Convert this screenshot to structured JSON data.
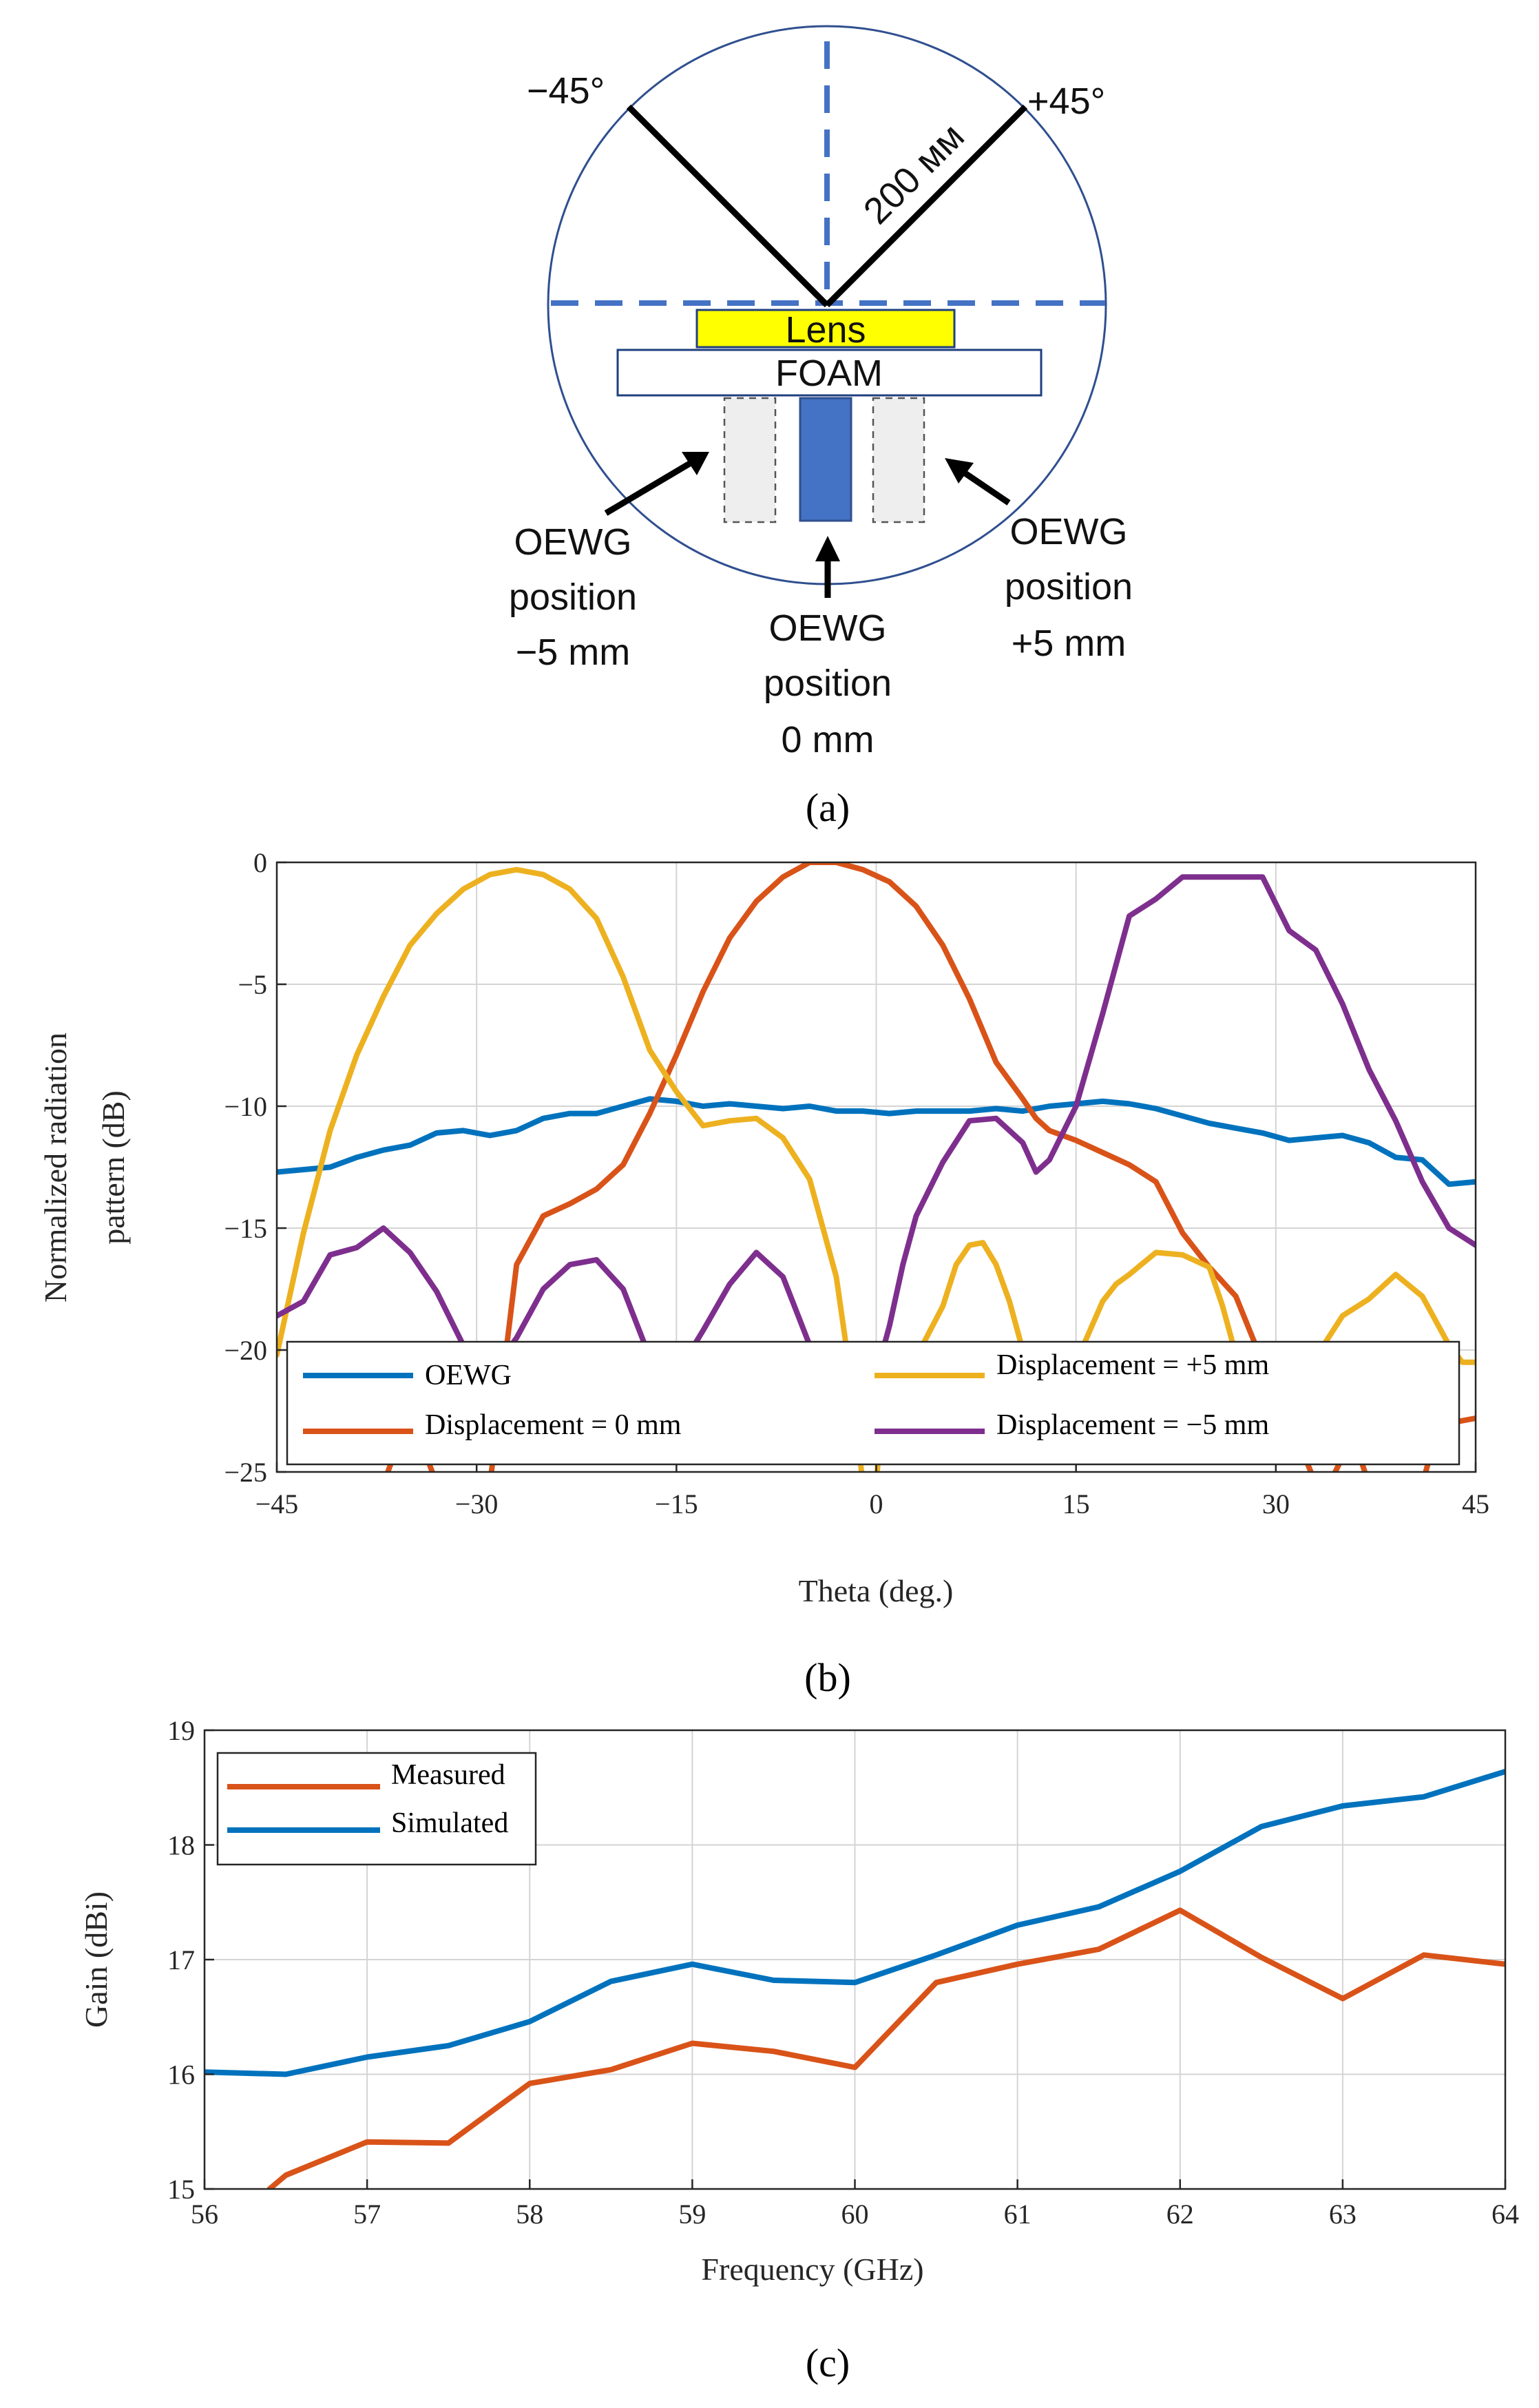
{
  "panel_a": {
    "caption": "(a)",
    "angle_left": "−45°",
    "angle_right": "+45°",
    "radius_label": "200 мм",
    "lens_label": "Lens",
    "foam_label": "FOAM",
    "left_label": [
      "OEWG",
      "position",
      "−5 mm"
    ],
    "center_label": [
      "OEWG",
      "position",
      "0 mm"
    ],
    "right_label": [
      "OEWG",
      "position",
      "+5 mm"
    ],
    "colors": {
      "lens": "#ffff00",
      "feed": "#4472c4",
      "dashed": "#4472c4",
      "circle": "#2f4f8f",
      "ghost": "#eeeeee"
    }
  },
  "chart_data": [
    {
      "id": "b",
      "type": "line",
      "caption": "(b)",
      "xlabel": "Theta (deg.)",
      "ylabel": "Normalized radiation pattern (dB)",
      "ylabel_lines": [
        "Normalized radiation",
        "pattern (dB)"
      ],
      "xlim": [
        -45,
        45
      ],
      "ylim": [
        -25,
        0
      ],
      "xticks": [
        -45,
        -30,
        -15,
        0,
        15,
        30,
        45
      ],
      "yticks": [
        -25,
        -20,
        -15,
        -10,
        -5,
        0
      ],
      "xtick_labels": [
        "−45",
        "−30",
        "−15",
        "0",
        "15",
        "30",
        "45"
      ],
      "ytick_labels": [
        "−25",
        "−20",
        "−15",
        "−10",
        "−5",
        "0"
      ],
      "grid": true,
      "legend_position": "bottom",
      "series": [
        {
          "name": "OEWG",
          "color": "#0072bd",
          "x": [
            -45,
            -41,
            -39,
            -37,
            -35,
            -33,
            -31,
            -29,
            -27,
            -25,
            -23,
            -21,
            -19,
            -17,
            -15,
            -13,
            -11,
            -9,
            -7,
            -5,
            -3,
            -1,
            1,
            3,
            5,
            7,
            9,
            11,
            13,
            15,
            17,
            19,
            21,
            23,
            25,
            27,
            29,
            31,
            33,
            35,
            37,
            39,
            41,
            43,
            45
          ],
          "y": [
            -12.7,
            -12.5,
            -12.1,
            -11.8,
            -11.6,
            -11.1,
            -11.0,
            -11.2,
            -11.0,
            -10.5,
            -10.3,
            -10.3,
            -10.0,
            -9.7,
            -9.8,
            -10.0,
            -9.9,
            -10.0,
            -10.1,
            -10.0,
            -10.2,
            -10.2,
            -10.3,
            -10.2,
            -10.2,
            -10.2,
            -10.1,
            -10.2,
            -10.0,
            -9.9,
            -9.8,
            -9.9,
            -10.1,
            -10.4,
            -10.7,
            -10.9,
            -11.1,
            -11.4,
            -11.3,
            -11.2,
            -11.5,
            -12.1,
            -12.2,
            -13.2,
            -13.1
          ]
        },
        {
          "name": "Displacement = 0 mm",
          "color": "#d95319",
          "x": [
            -37,
            -36,
            -34,
            -33,
            -29,
            -28,
            -27,
            -25,
            -23,
            -21,
            -19,
            -17,
            -15,
            -13,
            -11,
            -9,
            -7,
            -5,
            -3,
            -1,
            1,
            3,
            5,
            7,
            9,
            11,
            12,
            13,
            15,
            17,
            19,
            21,
            23,
            25,
            27,
            29,
            31,
            33,
            34,
            35,
            36,
            37,
            41,
            42,
            43,
            45
          ],
          "y": [
            -25.5,
            -24.0,
            -24.0,
            -25.5,
            -25.5,
            -21.0,
            -16.5,
            -14.5,
            -14.0,
            -13.4,
            -12.4,
            -10.3,
            -7.9,
            -5.3,
            -3.1,
            -1.6,
            -0.6,
            0,
            0,
            -0.3,
            -0.8,
            -1.8,
            -3.4,
            -5.6,
            -8.2,
            -9.7,
            -10.5,
            -11.0,
            -11.4,
            -11.9,
            -12.4,
            -13.1,
            -15.2,
            -16.6,
            -17.8,
            -20.5,
            -22.8,
            -25.5,
            -25.5,
            -24.4,
            -23.9,
            -25.5,
            -25.5,
            -23.5,
            -23.0,
            -22.8
          ]
        },
        {
          "name": "Displacement = +5 mm",
          "color": "#edb120",
          "x": [
            -45,
            -43,
            -41,
            -39,
            -37,
            -35,
            -33,
            -31,
            -29,
            -27,
            -25,
            -23,
            -21,
            -19,
            -17,
            -15,
            -13,
            -11,
            -9,
            -7,
            -5,
            -3,
            -2,
            -1,
            0,
            0.5,
            1,
            3,
            5,
            6,
            7,
            8,
            9,
            10,
            11,
            12,
            13,
            15,
            17,
            18,
            19,
            21,
            23,
            25,
            26,
            27,
            28,
            29,
            30,
            33,
            35,
            37,
            39,
            41,
            43,
            44,
            45
          ],
          "y": [
            -20.2,
            -15.2,
            -11.0,
            -7.9,
            -5.5,
            -3.4,
            -2.1,
            -1.1,
            -0.5,
            -0.3,
            -0.5,
            -1.1,
            -2.3,
            -4.7,
            -7.7,
            -9.4,
            -10.8,
            -10.6,
            -10.5,
            -11.3,
            -13.0,
            -17.0,
            -20.8,
            -25.5,
            -25.5,
            -22.0,
            -20.3,
            -20.3,
            -18.2,
            -16.5,
            -15.7,
            -15.6,
            -16.5,
            -18.0,
            -20.0,
            -20.5,
            -20.5,
            -20.5,
            -18.0,
            -17.3,
            -16.9,
            -16.0,
            -16.1,
            -16.6,
            -18.2,
            -20.2,
            -20.5,
            -20.5,
            -20.5,
            -20.3,
            -18.6,
            -17.9,
            -16.9,
            -17.8,
            -19.8,
            -20.5,
            -20.5
          ]
        },
        {
          "name": "Displacement = −5 mm",
          "color": "#7e2f8e",
          "x": [
            -45,
            -43,
            -41,
            -39,
            -37,
            -35,
            -33,
            -31,
            -30,
            -29,
            -27,
            -25,
            -23,
            -21,
            -19,
            -17,
            -15,
            -13,
            -11,
            -9,
            -7,
            -5,
            -3,
            -1,
            0,
            1,
            2,
            3,
            5,
            7,
            9,
            11,
            12,
            13,
            15,
            17,
            19,
            21,
            23,
            25,
            27,
            29,
            31,
            33,
            35,
            37,
            39,
            41,
            43,
            45
          ],
          "y": [
            -18.6,
            -18.0,
            -16.1,
            -15.8,
            -15.0,
            -16.0,
            -17.6,
            -19.8,
            -21.0,
            -21.0,
            -19.5,
            -17.5,
            -16.5,
            -16.3,
            -17.5,
            -20.3,
            -21.0,
            -19.2,
            -17.3,
            -16.0,
            -17.0,
            -19.8,
            -21.0,
            -21.0,
            -21.0,
            -19.0,
            -16.5,
            -14.5,
            -12.3,
            -10.6,
            -10.5,
            -11.5,
            -12.7,
            -12.2,
            -10.0,
            -6.2,
            -2.2,
            -1.5,
            -0.6,
            -0.6,
            -0.6,
            -0.6,
            -2.8,
            -3.6,
            -5.8,
            -8.5,
            -10.6,
            -13.1,
            -15.0,
            -15.7
          ]
        }
      ]
    },
    {
      "id": "c",
      "type": "line",
      "caption": "(c)",
      "xlabel": "Frequency (GHz)",
      "ylabel": "Gain (dBi)",
      "xlim": [
        56,
        64
      ],
      "ylim": [
        15,
        19
      ],
      "xticks": [
        56,
        57,
        58,
        59,
        60,
        61,
        62,
        63,
        64
      ],
      "yticks": [
        15,
        16,
        17,
        18,
        19
      ],
      "xtick_labels": [
        "56",
        "57",
        "58",
        "59",
        "60",
        "61",
        "62",
        "63",
        "64"
      ],
      "ytick_labels": [
        "15",
        "16",
        "17",
        "18",
        "19"
      ],
      "grid": true,
      "legend_position": "top-left",
      "series": [
        {
          "name": "Measured",
          "color": "#d95319",
          "x": [
            56.4,
            56.5,
            57.0,
            57.5,
            58.0,
            58.5,
            59.0,
            59.5,
            60.0,
            60.5,
            61.0,
            61.5,
            62.0,
            62.5,
            63.0,
            63.5,
            64.0
          ],
          "y": [
            15.0,
            15.12,
            15.41,
            15.4,
            15.92,
            16.04,
            16.27,
            16.2,
            16.06,
            16.8,
            16.96,
            17.09,
            17.43,
            17.02,
            16.66,
            17.04,
            16.96
          ]
        },
        {
          "name": "Simulated",
          "color": "#0072bd",
          "x": [
            56.0,
            56.5,
            57.0,
            57.5,
            58.0,
            58.5,
            59.0,
            59.5,
            60.0,
            60.5,
            61.0,
            61.5,
            62.0,
            62.5,
            63.0,
            63.5,
            64.0
          ],
          "y": [
            16.02,
            16.0,
            16.15,
            16.25,
            16.46,
            16.81,
            16.96,
            16.82,
            16.8,
            17.04,
            17.3,
            17.46,
            17.77,
            18.16,
            18.34,
            18.42,
            18.64
          ]
        }
      ]
    }
  ]
}
